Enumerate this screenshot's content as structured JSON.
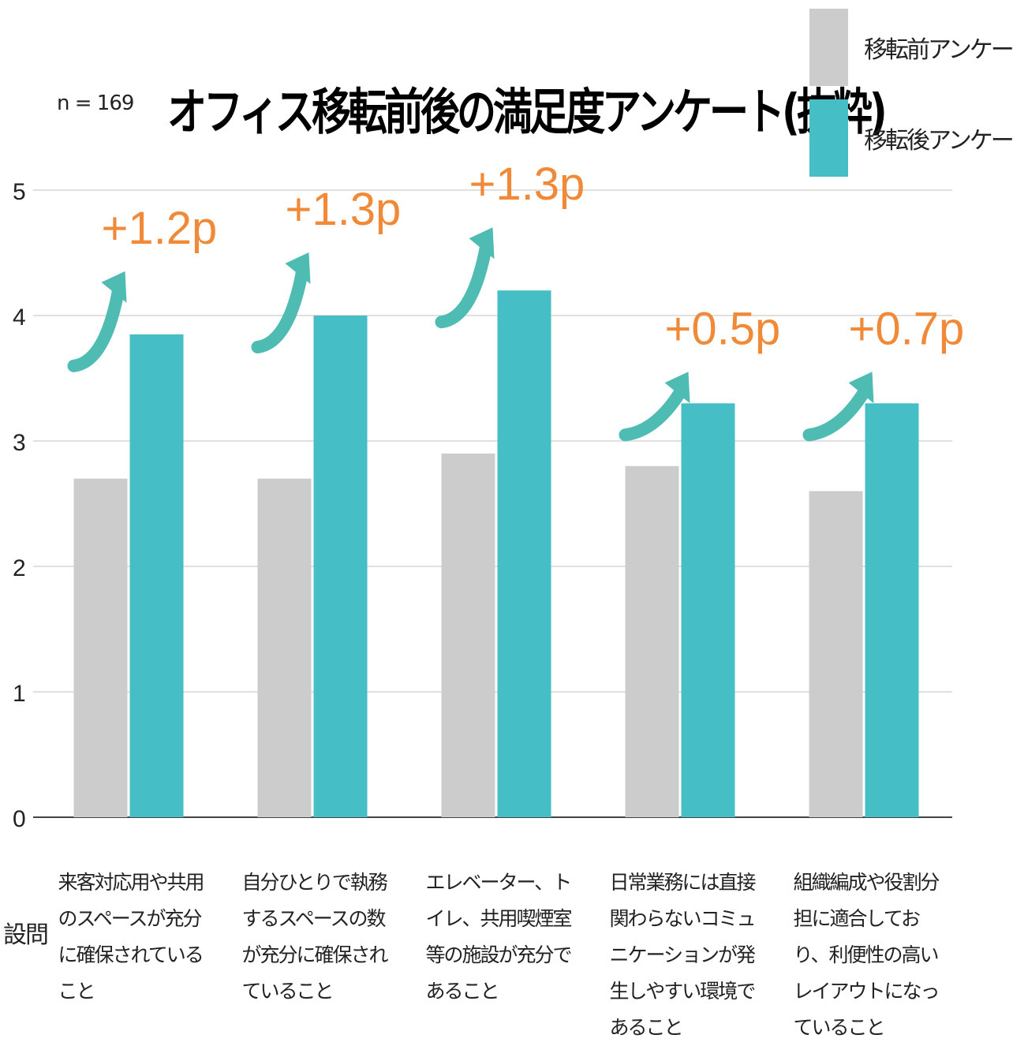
{
  "title": "オフィス移転前後の満足度アンケート(抜粋)",
  "sample_size": "n = 169",
  "question_label": "設問",
  "colors": {
    "before": "#cccccc",
    "after": "#45bec6",
    "annotation": "#f08a38",
    "arrow": "#4fbcb3"
  },
  "chart_data": {
    "type": "bar",
    "title": "オフィス移転前後の満足度アンケート(抜粋)",
    "categories": [
      "来客対応用や共用のスペースが充分に確保されていること",
      "自分ひとりで執務するスペースの数が充分に確保されていること",
      "エレベーター、トイレ、共用喫煙室等の施設が充分であること",
      "日常業務には直接関わらないコミュニケーションが発生しやすい環境であること",
      "組織編成や役割分担に適合しており、利便性の高いレイアウトになっていること"
    ],
    "series": [
      {
        "name": "移転前アンケート",
        "values": [
          2.7,
          2.7,
          2.9,
          2.8,
          2.6
        ]
      },
      {
        "name": "移転後アンケート",
        "values": [
          3.85,
          4.0,
          4.2,
          3.3,
          3.3
        ]
      }
    ],
    "annotations": [
      "+1.2p",
      "+1.3p",
      "+1.3p",
      "+0.5p",
      "+0.7p"
    ],
    "ylim": [
      0,
      5
    ],
    "yticks": [
      "0",
      "1",
      "2",
      "3",
      "4",
      "5"
    ],
    "grid": true,
    "legend": "top-right"
  }
}
